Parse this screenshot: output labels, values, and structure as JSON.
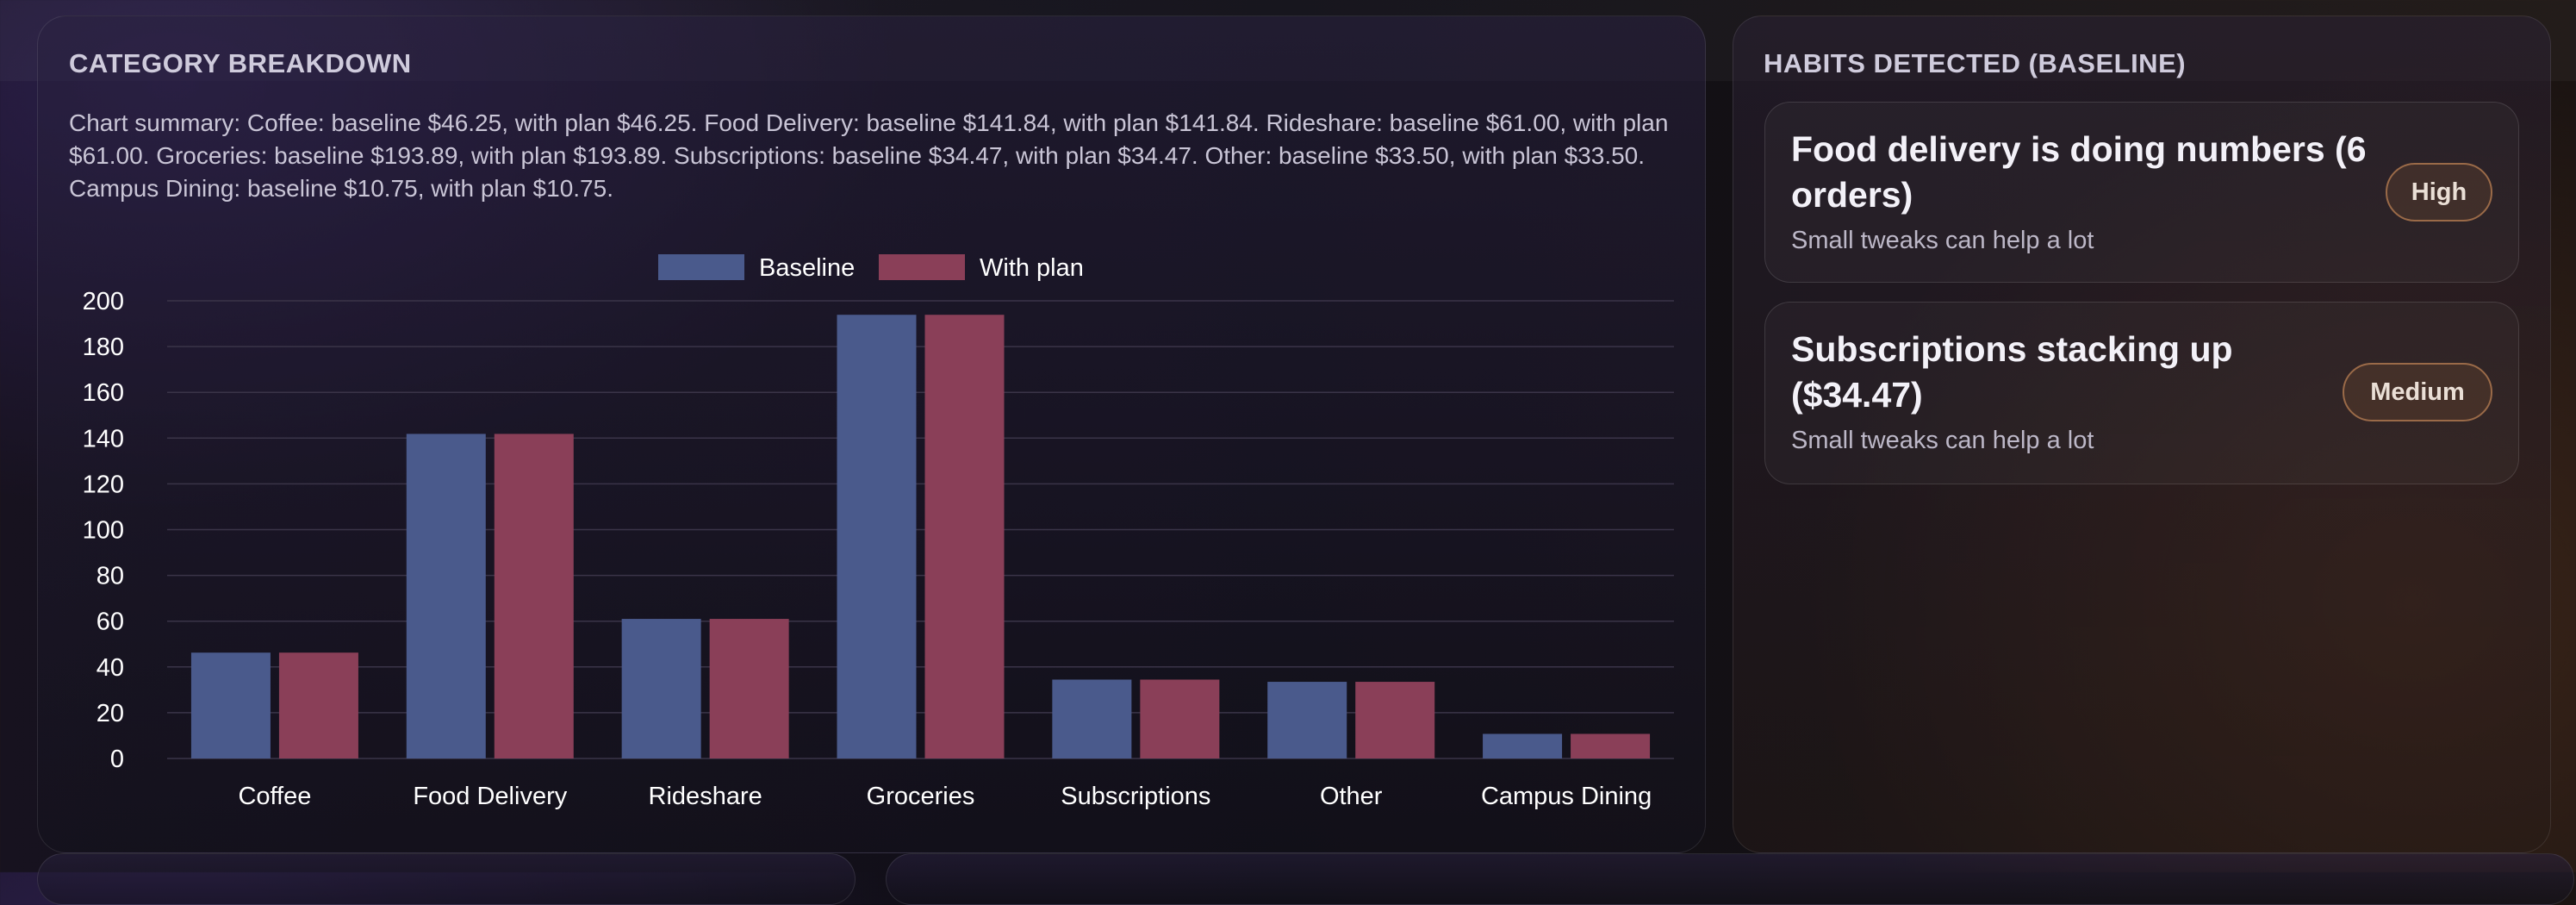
{
  "category": {
    "title": "CATEGORY BREAKDOWN",
    "summary": "Chart summary: Coffee: baseline $46.25, with plan $46.25. Food Delivery: baseline $141.84, with plan $141.84. Rideshare: baseline $61.00, with plan $61.00. Groceries: baseline $193.89, with plan $193.89. Subscriptions: baseline $34.47, with plan $34.47. Other: baseline $33.50, with plan $33.50. Campus Dining: baseline $10.75, with plan $10.75."
  },
  "habits": {
    "title": "HABITS DETECTED (BASELINE)",
    "items": [
      {
        "title": "Food delivery is doing numbers (6 orders)",
        "subtitle": "Small tweaks can help a lot",
        "badge": "High"
      },
      {
        "title": "Subscriptions stacking up ($34.47)",
        "subtitle": "Small tweaks can help a lot",
        "badge": "Medium"
      }
    ]
  },
  "colors": {
    "baseline": "#4a5a8c",
    "with_plan": "#8a3f58",
    "gridline": "#3a3448",
    "tick_text": "#ffffff"
  },
  "chart_data": {
    "type": "bar",
    "categories": [
      "Coffee",
      "Food Delivery",
      "Rideshare",
      "Groceries",
      "Subscriptions",
      "Other",
      "Campus Dining"
    ],
    "series": [
      {
        "name": "Baseline",
        "values": [
          46.25,
          141.84,
          61.0,
          193.89,
          34.47,
          33.5,
          10.75
        ]
      },
      {
        "name": "With plan",
        "values": [
          46.25,
          141.84,
          61.0,
          193.89,
          34.47,
          33.5,
          10.75
        ]
      }
    ],
    "ylim": [
      0,
      200
    ],
    "yticks": [
      0,
      20,
      40,
      60,
      80,
      100,
      120,
      140,
      160,
      180,
      200
    ],
    "grid": true,
    "legend": "top-center"
  }
}
